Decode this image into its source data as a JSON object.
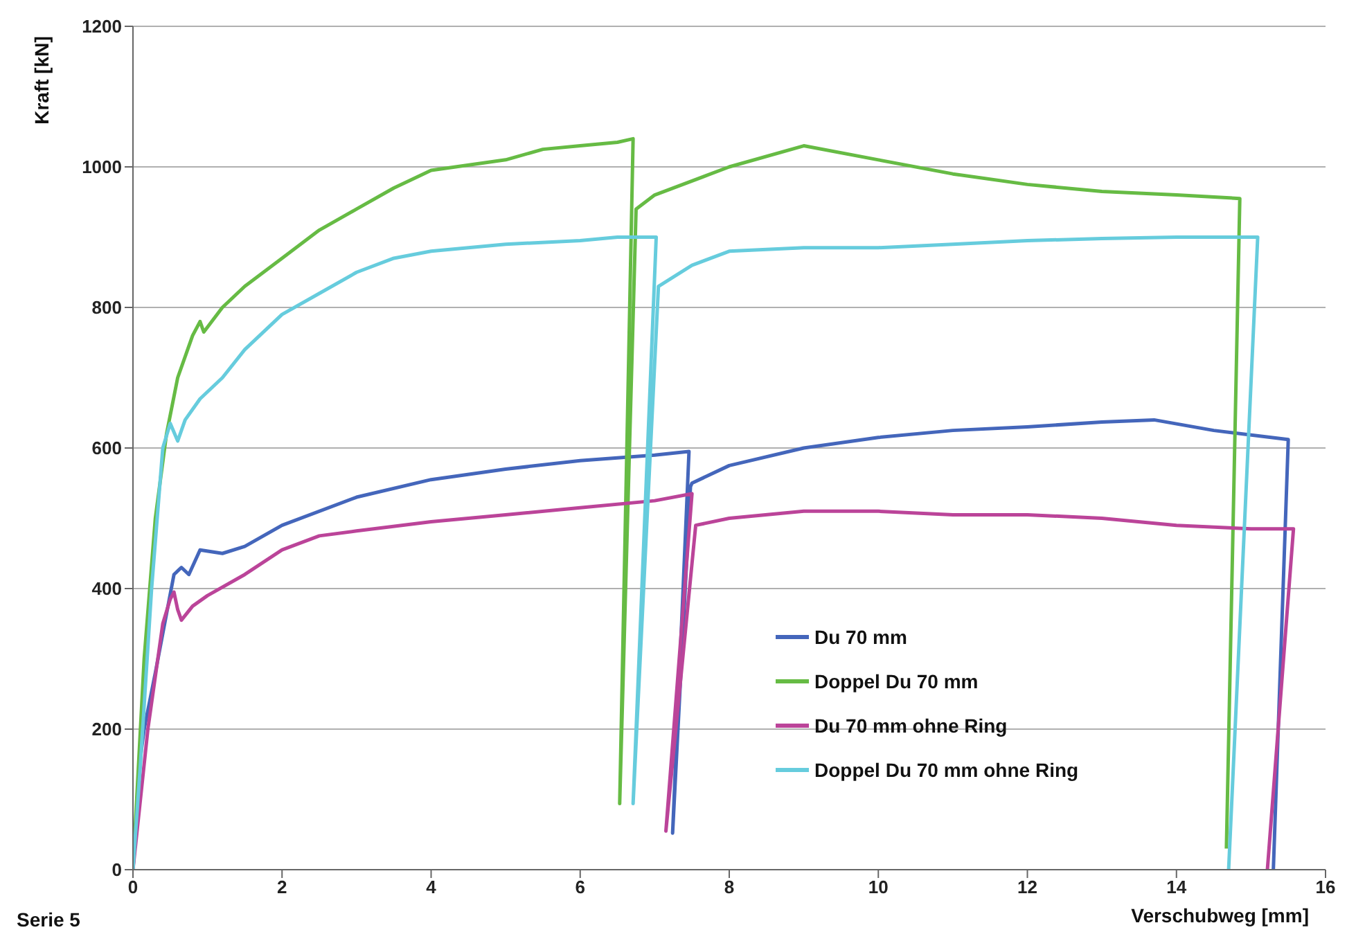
{
  "chart_data": {
    "type": "line",
    "xlabel": "Verschubweg [mm]",
    "ylabel": "Kraft [kN]",
    "annotations": [
      "Serie 5"
    ],
    "xlim": [
      0,
      16
    ],
    "xticks": [
      0,
      2,
      4,
      6,
      8,
      10,
      12,
      14,
      16
    ],
    "ylim": [
      0,
      1200
    ],
    "yticks": [
      0,
      200,
      400,
      600,
      800,
      1000,
      1200
    ],
    "grid": "y",
    "legend": "bottom right",
    "marker": "none",
    "line_style": "solid",
    "series": [
      {
        "name": "Du 70 mm",
        "color": "#4466bb",
        "x": [
          0,
          0.1,
          0.15,
          0.3,
          0.55,
          0.65,
          0.75,
          0.9,
          1.2,
          1.5,
          2,
          3,
          4,
          5,
          6,
          7,
          7.46,
          7.24,
          7.48,
          7.5,
          8,
          9,
          10,
          11,
          12,
          13,
          13.7,
          14.5,
          15.5,
          15.3
        ],
        "values": [
          0,
          160,
          200,
          280,
          420,
          430,
          420,
          455,
          450,
          460,
          490,
          530,
          555,
          570,
          582,
          590,
          595,
          52,
          545,
          550,
          575,
          600,
          615,
          625,
          630,
          637,
          640,
          625,
          612,
          0
        ]
      },
      {
        "name": "Doppel Du 70 mm",
        "color": "#66bb44",
        "x": [
          0,
          0.05,
          0.15,
          0.3,
          0.45,
          0.6,
          0.8,
          0.9,
          0.95,
          1.2,
          1.5,
          2,
          2.5,
          3,
          3.5,
          4,
          5,
          5.5,
          6,
          6.5,
          6.71,
          6.53,
          6.75,
          7,
          8,
          9,
          10,
          11,
          12,
          13,
          14,
          14.85,
          14.67
        ],
        "values": [
          0,
          100,
          300,
          500,
          620,
          700,
          760,
          780,
          765,
          800,
          830,
          870,
          910,
          940,
          970,
          995,
          1010,
          1025,
          1030,
          1035,
          1040,
          94,
          940,
          960,
          1000,
          1030,
          1010,
          990,
          975,
          965,
          960,
          955,
          30
        ]
      },
      {
        "name": "Du 70 mm ohne Ring",
        "color": "#bb4499",
        "x": [
          0,
          0.2,
          0.4,
          0.5,
          0.55,
          0.6,
          0.65,
          0.8,
          1,
          1.5,
          2,
          2.5,
          3,
          4,
          5,
          6,
          7,
          7.5,
          7.15,
          7.55,
          8,
          9,
          10,
          11,
          12,
          13,
          14,
          15,
          15.57,
          15.22
        ],
        "values": [
          0,
          200,
          350,
          385,
          395,
          370,
          355,
          375,
          390,
          420,
          455,
          475,
          482,
          495,
          505,
          515,
          525,
          535,
          55,
          490,
          500,
          510,
          510,
          505,
          505,
          500,
          490,
          485,
          485,
          0
        ]
      },
      {
        "name": "Doppel Du 70 mm ohne Ring",
        "color": "#66ccdd",
        "x": [
          0,
          0.1,
          0.25,
          0.4,
          0.5,
          0.6,
          0.7,
          0.9,
          1.2,
          1.5,
          2,
          2.5,
          3,
          3.5,
          4,
          5,
          6,
          6.5,
          7.02,
          6.71,
          7.05,
          7.5,
          8,
          9,
          10,
          11,
          12,
          13,
          14,
          15.09,
          14.7
        ],
        "values": [
          0,
          150,
          400,
          600,
          635,
          610,
          640,
          670,
          700,
          740,
          790,
          820,
          850,
          870,
          880,
          890,
          895,
          900,
          900,
          94,
          830,
          860,
          880,
          885,
          885,
          890,
          895,
          898,
          900,
          900,
          0
        ]
      }
    ]
  }
}
